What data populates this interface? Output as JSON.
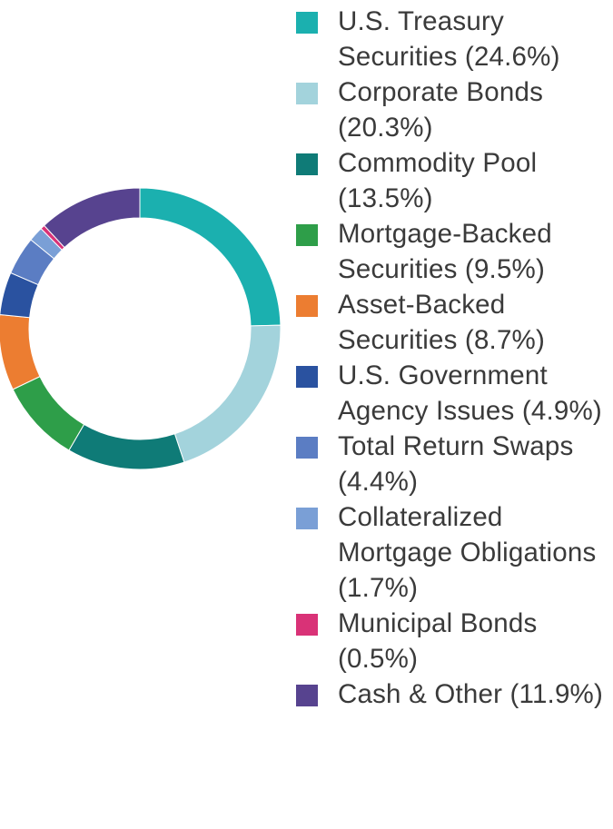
{
  "chart_data": {
    "type": "pie",
    "variant": "donut",
    "legend_position": "right",
    "categories": [
      "U.S. Treasury Securities",
      "Corporate Bonds",
      "Commodity Pool",
      "Mortgage-Backed Securities",
      "Asset-Backed Securities",
      "U.S. Government Agency Issues",
      "Total Return Swaps",
      "Collateralized Mortgage Obligations",
      "Municipal Bonds",
      "Cash & Other"
    ],
    "values": [
      24.6,
      20.3,
      13.5,
      9.5,
      8.7,
      4.9,
      4.4,
      1.7,
      0.5,
      11.9
    ],
    "colors": [
      "#1bb0af",
      "#a3d3dc",
      "#0f7b77",
      "#2e9e49",
      "#ec7d31",
      "#2a52a0",
      "#5b7dc3",
      "#7a9fd6",
      "#d93277",
      "#57438f"
    ],
    "legend": [
      {
        "label": "U.S. Treasury Securities (24.6%)",
        "color": "#1bb0af"
      },
      {
        "label": "Corporate Bonds (20.3%)",
        "color": "#a3d3dc"
      },
      {
        "label": "Commodity Pool (13.5%)",
        "color": "#0f7b77"
      },
      {
        "label": "Mortgage-Backed Securities (9.5%)",
        "color": "#2e9e49"
      },
      {
        "label": "Asset-Backed Securities (8.7%)",
        "color": "#ec7d31"
      },
      {
        "label": "U.S. Government Agency Issues (4.9%)",
        "color": "#2a52a0"
      },
      {
        "label": "Total Return Swaps (4.4%)",
        "color": "#5b7dc3"
      },
      {
        "label": "Collateralized Mortgage Obligations (1.7%)",
        "color": "#7a9fd6"
      },
      {
        "label": "Municipal Bonds (0.5%)",
        "color": "#d93277"
      },
      {
        "label": "Cash & Other (11.9%)",
        "color": "#57438f"
      }
    ]
  }
}
